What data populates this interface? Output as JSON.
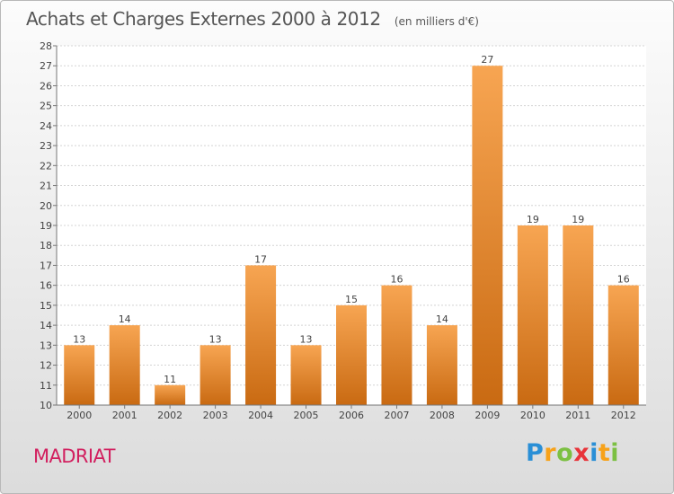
{
  "header": {
    "title": "Achats et Charges Externes 2000 à 2012",
    "subtitle": "(en milliers d'€)"
  },
  "footer": {
    "city": "MADRIAT",
    "logo": [
      "P",
      "r",
      "o",
      "x",
      "i",
      "t",
      "i"
    ]
  },
  "chart_data": {
    "type": "bar",
    "categories": [
      "2000",
      "2001",
      "2002",
      "2003",
      "2004",
      "2005",
      "2006",
      "2007",
      "2008",
      "2009",
      "2010",
      "2011",
      "2012"
    ],
    "values": [
      13,
      14,
      11,
      13,
      17,
      13,
      15,
      16,
      14,
      27,
      19,
      19,
      16
    ],
    "title": "Achats et Charges Externes 2000 à 2012",
    "ylim": [
      10,
      28
    ],
    "yticks": [
      10,
      11,
      12,
      13,
      14,
      15,
      16,
      17,
      18,
      19,
      20,
      21,
      22,
      23,
      24,
      25,
      26,
      27,
      28
    ],
    "grid": true,
    "bar_color": "#f0912e"
  }
}
